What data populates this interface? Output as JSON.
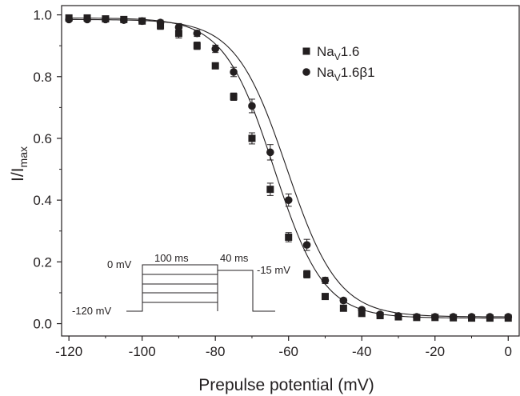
{
  "chart_data": {
    "type": "scatter",
    "xlabel": "Prepulse potential (mV)",
    "ylabel": {
      "main": "I/I",
      "sub": "max"
    },
    "xlim": [
      -122,
      3
    ],
    "ylim": [
      -0.04,
      1.03
    ],
    "xticks": [
      -120,
      -100,
      -80,
      -60,
      -40,
      -20,
      0
    ],
    "yticks": [
      0.0,
      0.2,
      0.4,
      0.6,
      0.8,
      1.0
    ],
    "xtick_labels": [
      "-120",
      "-100",
      "-80",
      "-60",
      "-40",
      "-20",
      "0"
    ],
    "ytick_labels": [
      "0.0",
      "0.2",
      "0.4",
      "0.6",
      "0.8",
      "1.0"
    ],
    "grid": false,
    "legend_position": "top-right",
    "series": [
      {
        "name": "Nav1.6",
        "name_main": "Na",
        "name_sub": "V",
        "name_rest": "1.6",
        "marker": "square",
        "x": [
          -120,
          -115,
          -110,
          -105,
          -100,
          -95,
          -90,
          -85,
          -80,
          -75,
          -70,
          -65,
          -60,
          -55,
          -50,
          -45,
          -40,
          -35,
          -30,
          -25,
          -20,
          -15,
          -10,
          -5,
          0
        ],
        "y": [
          0.99,
          0.99,
          0.987,
          0.985,
          0.98,
          0.965,
          0.94,
          0.9,
          0.835,
          0.735,
          0.6,
          0.435,
          0.28,
          0.16,
          0.088,
          0.05,
          0.033,
          0.026,
          0.022,
          0.02,
          0.02,
          0.019,
          0.018,
          0.018,
          0.018
        ],
        "err": [
          0.005,
          0.005,
          0.005,
          0.005,
          0.008,
          0.012,
          0.015,
          0.012,
          0.01,
          0.012,
          0.018,
          0.02,
          0.015,
          0.012,
          0.008,
          0.006,
          0.005,
          0.005,
          0.005,
          0.005,
          0.005,
          0.005,
          0.005,
          0.005,
          0.005
        ],
        "fit": {
          "v_half": -64.0,
          "k": 6.8,
          "top": 0.99,
          "bottom": 0.018
        }
      },
      {
        "name": "Nav1.6β1",
        "name_main": "Na",
        "name_sub": "V",
        "name_rest": "1.6β1",
        "marker": "circle",
        "x": [
          -120,
          -115,
          -110,
          -105,
          -100,
          -95,
          -90,
          -85,
          -80,
          -75,
          -70,
          -65,
          -60,
          -55,
          -50,
          -45,
          -40,
          -35,
          -30,
          -25,
          -20,
          -15,
          -10,
          -5,
          0
        ],
        "y": [
          0.985,
          0.985,
          0.985,
          0.983,
          0.98,
          0.975,
          0.96,
          0.94,
          0.89,
          0.815,
          0.705,
          0.555,
          0.4,
          0.255,
          0.14,
          0.075,
          0.045,
          0.03,
          0.025,
          0.022,
          0.022,
          0.022,
          0.022,
          0.022,
          0.022
        ],
        "err": [
          0.005,
          0.005,
          0.005,
          0.005,
          0.006,
          0.008,
          0.012,
          0.01,
          0.012,
          0.015,
          0.022,
          0.025,
          0.02,
          0.018,
          0.01,
          0.008,
          0.006,
          0.005,
          0.005,
          0.005,
          0.005,
          0.005,
          0.005,
          0.005,
          0.005
        ],
        "fit": {
          "v_half": -60.5,
          "k": 7.0,
          "top": 0.985,
          "bottom": 0.022
        }
      }
    ],
    "inset_protocol": {
      "holding_label": "-120 mV",
      "max_label": "0 mV",
      "test_label": "-15 mV",
      "prepulse_duration": "100 ms",
      "test_duration": "40 ms"
    }
  },
  "colors": {
    "ink": "#231f20",
    "background": "#ffffff"
  }
}
